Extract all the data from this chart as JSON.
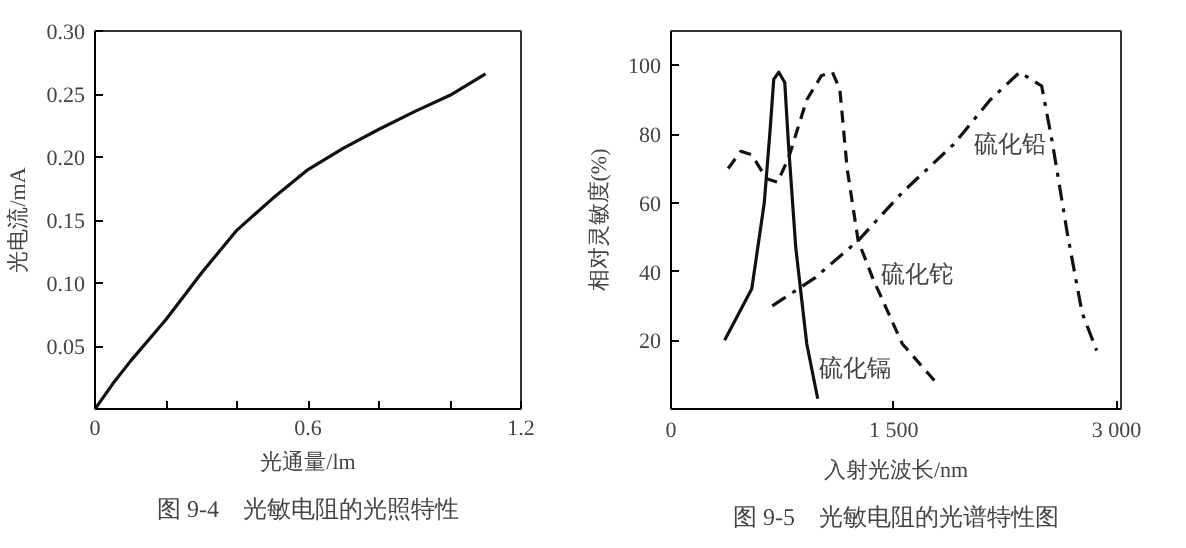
{
  "chart_data": [
    {
      "type": "line",
      "xlabel": "光通量/lm",
      "ylabel": "光电流/mA",
      "annotations": [
        "图 9-4　光敏电阻的光照特性"
      ],
      "x": [
        0,
        0.05,
        0.1,
        0.2,
        0.3,
        0.4,
        0.5,
        0.6,
        0.7,
        0.8,
        0.9,
        1.0,
        1.1
      ],
      "series": [
        {
          "color": "#111111",
          "line_style": "solid",
          "values": [
            0,
            0.02,
            0.038,
            0.071,
            0.108,
            0.142,
            0.167,
            0.19,
            0.207,
            0.222,
            0.236,
            0.249,
            0.266
          ]
        }
      ],
      "xlim": [
        0,
        1.2
      ],
      "ylim": [
        0,
        0.3
      ],
      "xticks": [
        0,
        {
          "value": 0.2,
          "label": null
        },
        {
          "value": 0.4,
          "label": null
        },
        0.6,
        {
          "value": 0.8,
          "label": null
        },
        {
          "value": 1.0,
          "label": null
        },
        1.2
      ],
      "yticks": [
        0.05,
        {
          "value": 0.1,
          "label": "0.10"
        },
        0.15,
        {
          "value": 0.2,
          "label": "0.20"
        },
        0.25,
        {
          "value": 0.3,
          "label": "0.30"
        }
      ],
      "grid": false
    },
    {
      "type": "line",
      "xlabel": "入射光波长/nm",
      "ylabel": "相对灵敏度(%)",
      "annotations": [
        "图 9-5　光敏电阻的光谱特性图"
      ],
      "series": [
        {
          "name": "硫化镉",
          "color": "#111111",
          "line_style": "solid",
          "x": [
            361,
            544,
            628,
            667,
            692,
            726,
            766,
            791,
            840,
            914,
            988
          ],
          "values": [
            20,
            35,
            60,
            81,
            96,
            98,
            95,
            77,
            47,
            19,
            3
          ]
        },
        {
          "name": "硫化铊",
          "color": "#111111",
          "line_style": "dashed",
          "x": [
            385,
            470,
            544,
            643,
            717,
            791,
            914,
            1013,
            1087,
            1137,
            1186,
            1260,
            1359,
            1557,
            1779
          ],
          "values": [
            70,
            75,
            74,
            67,
            66,
            73,
            90,
            97,
            98,
            93,
            70,
            49,
            38,
            19,
            8
          ]
        },
        {
          "name": "硫化铅",
          "color": "#111111",
          "line_style": "dashdot",
          "x": [
            682,
            964,
            1260,
            1557,
            1903,
            2150,
            2348,
            2496,
            2570,
            2669,
            2768,
            2866
          ],
          "values": [
            30,
            38,
            49,
            63,
            77,
            90,
            98,
            94,
            77,
            51,
            28,
            17
          ]
        }
      ],
      "xlim": [
        0,
        3030
      ],
      "ylim": [
        0,
        110
      ],
      "xticks": [
        0,
        {
          "value": 1500,
          "label": "1 500"
        },
        {
          "value": 3000,
          "label": "3 000"
        }
      ],
      "yticks": [
        20,
        40,
        60,
        80,
        100
      ],
      "grid": false
    }
  ]
}
